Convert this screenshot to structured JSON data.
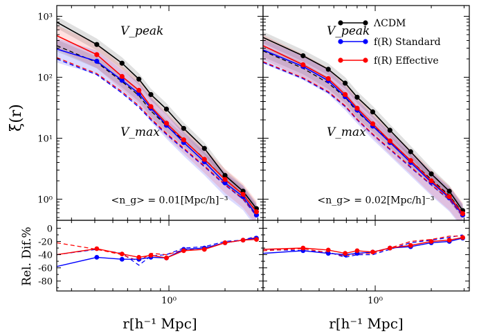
{
  "chart_data": {
    "type": "line",
    "ylabel_top": "ξ(r)",
    "ylabel_bottom": "Rel. Dif.%",
    "xlabel": "r[h⁻¹ Mpc]",
    "xlim": [
      0.25,
      3.2
    ],
    "ylim_top": [
      0.45,
      1500
    ],
    "ylim_bottom": [
      -95,
      12
    ],
    "x_tick_label": "10⁰",
    "y_top_ticks": [
      {
        "value": 1,
        "label": "10⁰"
      },
      {
        "value": 10,
        "label": "10¹"
      },
      {
        "value": 100,
        "label": "10²"
      },
      {
        "value": 1000,
        "label": "10³"
      }
    ],
    "y_bottom_ticks": [
      0,
      -20,
      -40,
      -60,
      -80
    ],
    "legend": [
      {
        "label": "ΛCDM",
        "color": "#000000"
      },
      {
        "label": "f(R) Standard",
        "color": "#0000ff"
      },
      {
        "label": "f(R) Effective",
        "color": "#ff0000"
      }
    ],
    "colors": {
      "lcdm": "#000000",
      "fr_std": "#0000ff",
      "fr_eff": "#ff0000"
    },
    "annotations": {
      "vpeak": "V_peak",
      "vmax": "V_max"
    },
    "panels": [
      {
        "density_label": "<n_g> = 0.01[Mpc/h]⁻³",
        "x": [
          0.25,
          0.41,
          0.56,
          0.69,
          0.8,
          0.97,
          1.2,
          1.55,
          2.0,
          2.5,
          2.95
        ],
        "vpeak": {
          "lcdm": [
            800,
            345,
            170,
            93,
            52,
            30,
            14.5,
            6.8,
            2.45,
            1.35,
            0.7
          ],
          "fr_std": [
            290,
            183,
            89,
            54,
            31,
            16.3,
            8.5,
            4.1,
            1.85,
            1.1,
            0.55
          ],
          "fr_eff": [
            480,
            235,
            103,
            61,
            33,
            17.6,
            9.4,
            4.5,
            2.1,
            1.2,
            0.62
          ]
        },
        "vmax": {
          "lcdm": [
            330,
            175,
            85,
            50,
            28,
            16,
            9.2,
            4.6,
            2.1,
            1.2,
            0.63
          ],
          "fr_std": [
            200,
            110,
            55,
            32,
            20,
            11.5,
            6.6,
            3.4,
            1.7,
            1.0,
            0.53
          ],
          "fr_eff": [
            210,
            115,
            58,
            34,
            21,
            12,
            6.9,
            3.5,
            1.75,
            1.02,
            0.55
          ]
        },
        "reldif": {
          "std_solid": [
            -58,
            -44,
            -47,
            -47,
            -44,
            -45,
            -32,
            -30,
            -22,
            -18,
            -15
          ],
          "eff_solid": [
            -40,
            -31,
            -39,
            -44,
            -41,
            -45,
            -34,
            -32,
            -22,
            -18,
            -17
          ],
          "std_dashed": [
            -40,
            -32,
            -38,
            -56,
            -42,
            -40,
            -30,
            -28,
            -20,
            -18,
            -12
          ],
          "eff_dashed": [
            -22,
            -32,
            -40,
            -50,
            -38,
            -40,
            -33,
            -30,
            -22,
            -18,
            -14
          ]
        }
      },
      {
        "density_label": "<n_g> = 0.02[Mpc/h]⁻³",
        "x": [
          0.25,
          0.41,
          0.56,
          0.69,
          0.8,
          0.97,
          1.2,
          1.55,
          2.0,
          2.5,
          2.95
        ],
        "vpeak": {
          "lcdm": [
            450,
            225,
            135,
            80,
            47,
            27,
            13.5,
            6.0,
            2.6,
            1.35,
            0.65
          ],
          "fr_std": [
            280,
            150,
            88,
            48,
            29,
            15.8,
            8.5,
            4.0,
            1.9,
            1.05,
            0.55
          ],
          "fr_eff": [
            330,
            160,
            95,
            52,
            31,
            17.2,
            9.0,
            4.3,
            2.0,
            1.1,
            0.58
          ]
        },
        "vmax": {
          "lcdm": [
            270,
            140,
            80,
            47,
            27,
            16,
            8.8,
            4.3,
            2.1,
            1.15,
            0.6
          ],
          "fr_std": [
            175,
            95,
            56,
            33,
            20,
            11.4,
            6.5,
            3.3,
            1.7,
            0.98,
            0.52
          ],
          "fr_eff": [
            180,
            98,
            58,
            34,
            20.5,
            11.7,
            6.7,
            3.4,
            1.73,
            1.0,
            0.53
          ]
        },
        "reldif": {
          "std_solid": [
            -38,
            -34,
            -38,
            -40,
            -38,
            -36,
            -30,
            -28,
            -22,
            -20,
            -15
          ],
          "eff_solid": [
            -32,
            -30,
            -33,
            -38,
            -34,
            -36,
            -30,
            -26,
            -20,
            -18,
            -14
          ],
          "std_dashed": [
            -32,
            -34,
            -36,
            -44,
            -40,
            -40,
            -32,
            -22,
            -18,
            -14,
            -10
          ],
          "eff_dashed": [
            -34,
            -31,
            -37,
            -42,
            -38,
            -38,
            -30,
            -20,
            -17,
            -12,
            -12
          ]
        }
      }
    ]
  }
}
